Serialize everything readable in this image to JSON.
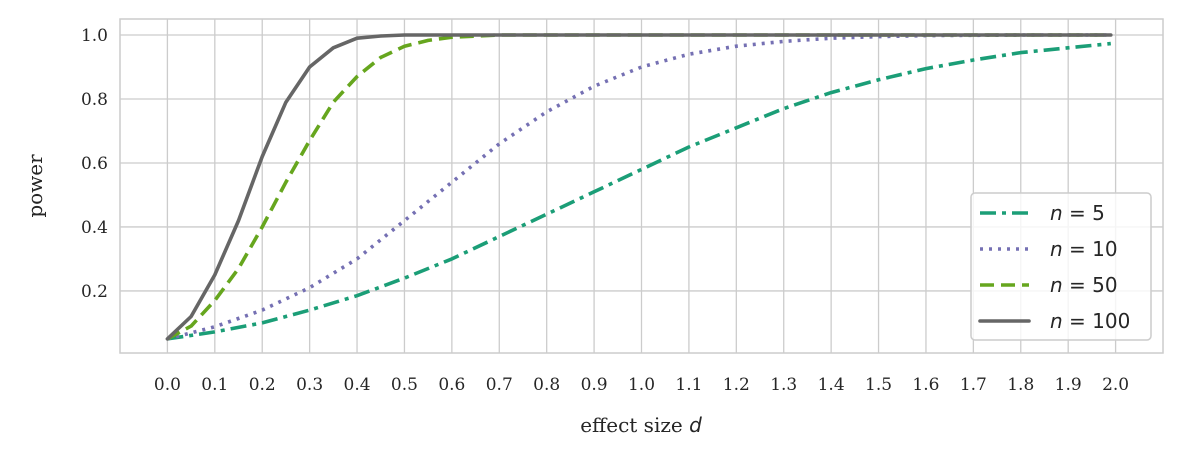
{
  "chart_data": {
    "type": "line",
    "title": "",
    "xlabel": "effect size d",
    "ylabel": "power",
    "xlim": [
      -0.1,
      2.1
    ],
    "ylim": [
      0.006,
      1.05
    ],
    "grid": true,
    "legend_position": "lower-right",
    "xticks": [
      "0.0",
      "0.1",
      "0.2",
      "0.3",
      "0.4",
      "0.5",
      "0.6",
      "0.7",
      "0.8",
      "0.9",
      "1.0",
      "1.1",
      "1.2",
      "1.3",
      "1.4",
      "1.5",
      "1.6",
      "1.7",
      "1.8",
      "1.9",
      "2.0"
    ],
    "yticks": [
      "0.2",
      "0.4",
      "0.6",
      "0.8",
      "1.0"
    ],
    "series": [
      {
        "name": "n = 5",
        "color": "#1b9e77",
        "style": "dashdot",
        "x": [
          0,
          0.1,
          0.2,
          0.3,
          0.4,
          0.5,
          0.6,
          0.7,
          0.8,
          0.9,
          1.0,
          1.1,
          1.2,
          1.3,
          1.4,
          1.5,
          1.6,
          1.7,
          1.8,
          1.9,
          1.99
        ],
        "y": [
          0.05,
          0.072,
          0.1,
          0.14,
          0.185,
          0.24,
          0.3,
          0.37,
          0.44,
          0.51,
          0.58,
          0.65,
          0.71,
          0.77,
          0.82,
          0.86,
          0.895,
          0.922,
          0.945,
          0.96,
          0.973
        ]
      },
      {
        "name": "n = 10",
        "color": "#7570b3",
        "style": "dotted",
        "x": [
          0,
          0.1,
          0.2,
          0.3,
          0.4,
          0.5,
          0.6,
          0.7,
          0.8,
          0.9,
          1.0,
          1.1,
          1.2,
          1.3,
          1.4,
          1.5,
          1.6,
          1.8,
          1.99
        ],
        "y": [
          0.05,
          0.088,
          0.14,
          0.21,
          0.3,
          0.42,
          0.54,
          0.66,
          0.76,
          0.84,
          0.9,
          0.94,
          0.965,
          0.98,
          0.99,
          0.995,
          0.998,
          1.0,
          1.0
        ]
      },
      {
        "name": "n = 50",
        "color": "#66a61e",
        "style": "dashed",
        "x": [
          0,
          0.05,
          0.1,
          0.15,
          0.2,
          0.25,
          0.3,
          0.35,
          0.4,
          0.45,
          0.5,
          0.55,
          0.6,
          0.7,
          1.0,
          1.99
        ],
        "y": [
          0.05,
          0.09,
          0.17,
          0.27,
          0.4,
          0.54,
          0.67,
          0.79,
          0.87,
          0.93,
          0.965,
          0.983,
          0.993,
          1.0,
          1.0,
          1.0
        ]
      },
      {
        "name": "n = 100",
        "color": "#666666",
        "style": "solid",
        "x": [
          0,
          0.05,
          0.1,
          0.15,
          0.2,
          0.25,
          0.3,
          0.35,
          0.4,
          0.45,
          0.5,
          0.6,
          1.0,
          1.99
        ],
        "y": [
          0.05,
          0.12,
          0.25,
          0.42,
          0.62,
          0.79,
          0.9,
          0.96,
          0.99,
          0.997,
          1.0,
          1.0,
          1.0,
          1.0
        ]
      }
    ]
  }
}
